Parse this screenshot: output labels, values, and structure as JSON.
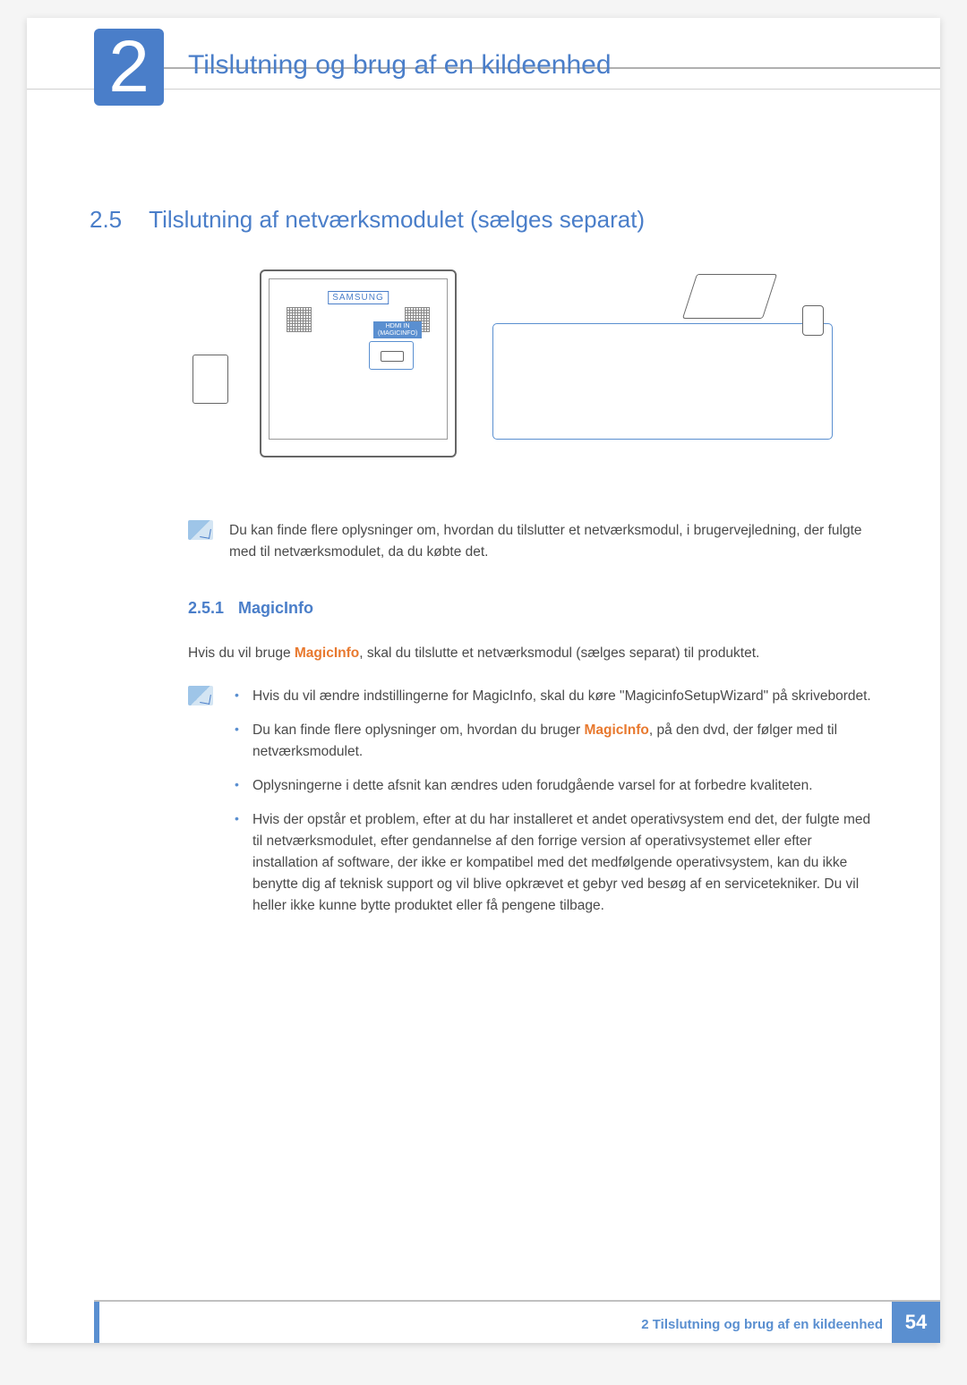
{
  "chapter": {
    "number": "2",
    "title": "Tilslutning og brug af en kildeenhed"
  },
  "section": {
    "number": "2.5",
    "title": "Tilslutning af netværksmodulet (sælges separat)"
  },
  "diagram": {
    "brand": "SAMSUNG",
    "port_label_line1": "HDMI IN",
    "port_label_line2": "(MAGICINFO)"
  },
  "note1": "Du kan finde flere oplysninger om, hvordan du tilslutter et netværksmodul, i brugervejledning, der fulgte med til netværksmodulet, da du købte det.",
  "subsection": {
    "number": "2.5.1",
    "title": "MagicInfo"
  },
  "intro": {
    "prefix": "Hvis du vil bruge ",
    "highlight": "MagicInfo",
    "suffix": ", skal du tilslutte et netværksmodul (sælges separat) til produktet."
  },
  "bullets": [
    {
      "text": "Hvis du vil ændre indstillingerne for MagicInfo, skal du køre \"MagicinfoSetupWizard\" på skrivebordet."
    },
    {
      "prefix": "Du kan finde flere oplysninger om, hvordan du bruger ",
      "highlight": "MagicInfo",
      "suffix": ", på den dvd, der følger med til netværksmodulet."
    },
    {
      "text": "Oplysningerne i dette afsnit kan ændres uden forudgående varsel for at forbedre kvaliteten."
    },
    {
      "text": "Hvis der opstår et problem, efter at du har installeret et andet operativsystem end det, der fulgte med til netværksmodulet, efter gendannelse af den forrige version af operativsystemet eller efter installation af software, der ikke er kompatibel med det medfølgende operativsystem, kan du ikke benytte dig af teknisk support og vil blive opkrævet et gebyr ved besøg af en servicetekniker. Du vil heller ikke kunne bytte produktet eller få pengene tilbage."
    }
  ],
  "footer": {
    "text": "2 Tilslutning og brug af en kildeenhed",
    "page": "54"
  },
  "colors": {
    "accent": "#4a7ec9",
    "highlight": "#e8792f",
    "text": "#4a4a4a"
  }
}
